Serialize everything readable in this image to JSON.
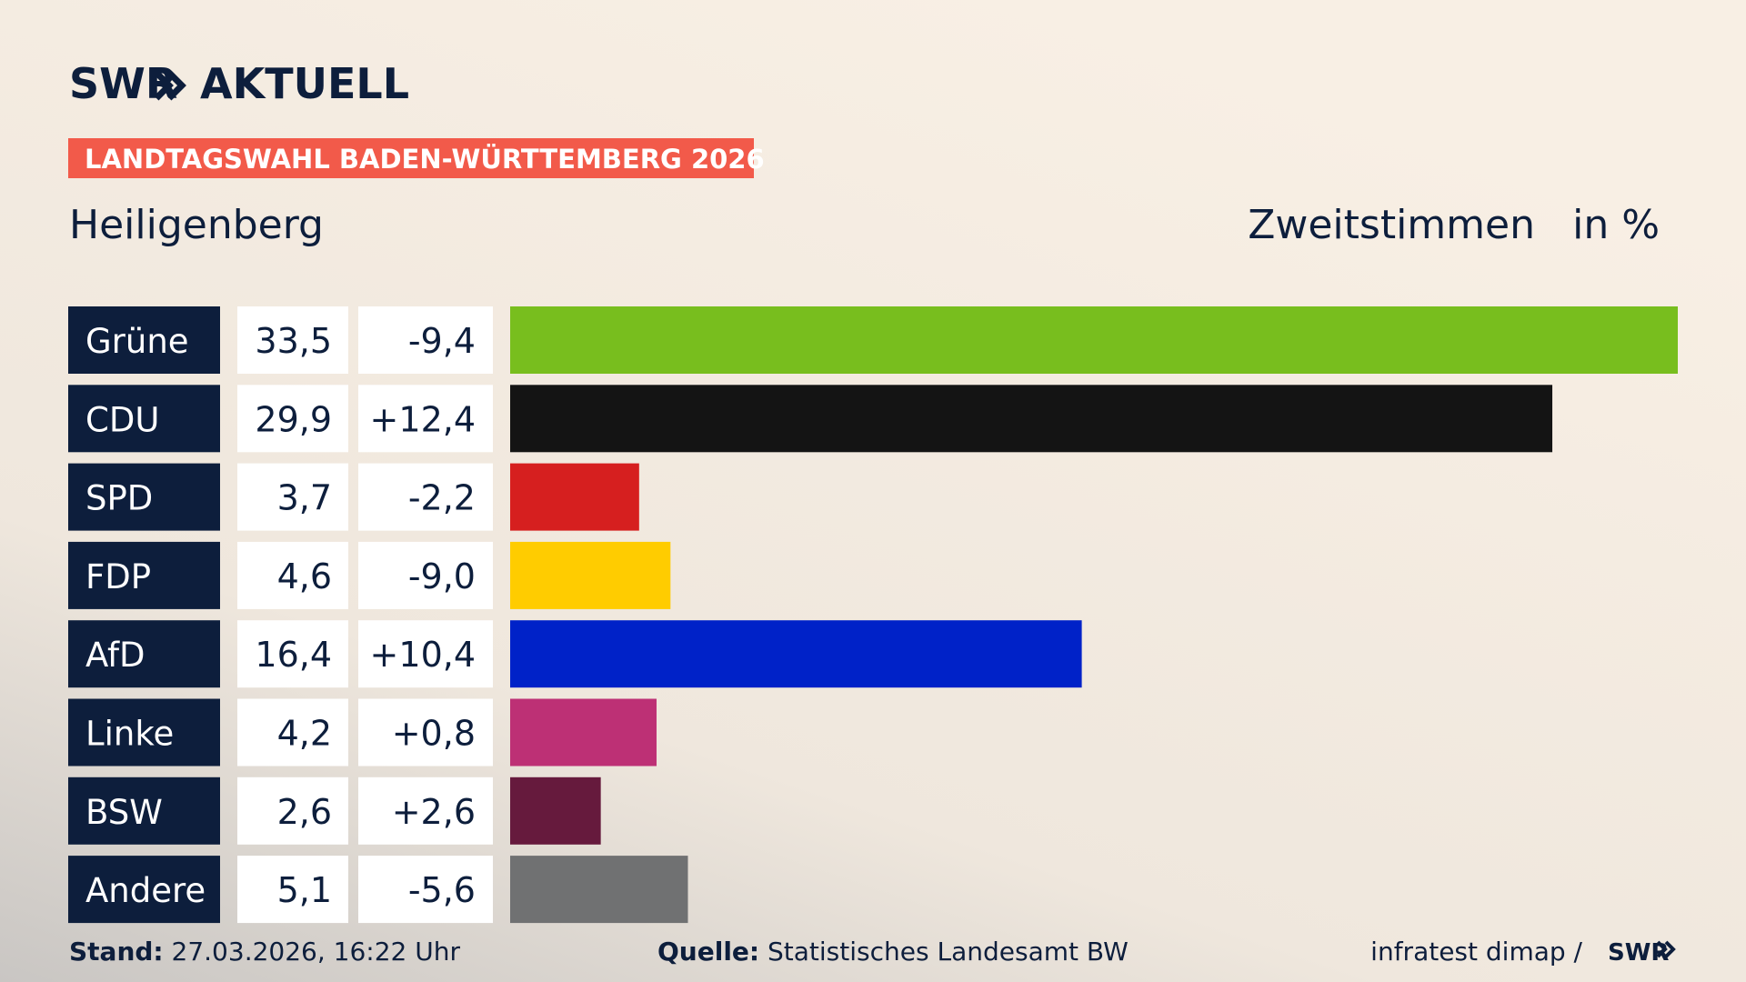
{
  "page": {
    "brand": "SWR",
    "brand_suffix": "AKTUELL",
    "banner": "LANDTAGSWAHL BADEN-WÜRTTEMBERG 2026",
    "footer_stand_label": "Stand:",
    "footer_stand": "27.03.2026, 16:22 Uhr",
    "footer_source_label": "Quelle:",
    "footer_source": "Statistisches Landesamt BW",
    "footer_credit": "infratest dimap /",
    "footer_brand": "SWR"
  },
  "chart_data": {
    "type": "bar",
    "orientation": "horizontal",
    "title": "Heiligenberg",
    "subtitle": "Zweitstimmen",
    "unit": "in %",
    "categories": [
      "Grüne",
      "CDU",
      "SPD",
      "FDP",
      "AfD",
      "Linke",
      "BSW",
      "Andere"
    ],
    "values": [
      33.5,
      29.9,
      3.7,
      4.6,
      16.4,
      4.2,
      2.6,
      5.1
    ],
    "value_labels": [
      "33,5",
      "29,9",
      "3,7",
      "4,6",
      "16,4",
      "4,2",
      "2,6",
      "5,1"
    ],
    "changes": [
      "-9,4",
      "+12,4",
      "-2,2",
      "-9,0",
      "+10,4",
      "+0,8",
      "+2,6",
      "-5,6"
    ],
    "colors": [
      "#78be1e",
      "#141414",
      "#d61f1f",
      "#ffcc00",
      "#0022c8",
      "#bd3075",
      "#661a3d",
      "#707172"
    ]
  }
}
